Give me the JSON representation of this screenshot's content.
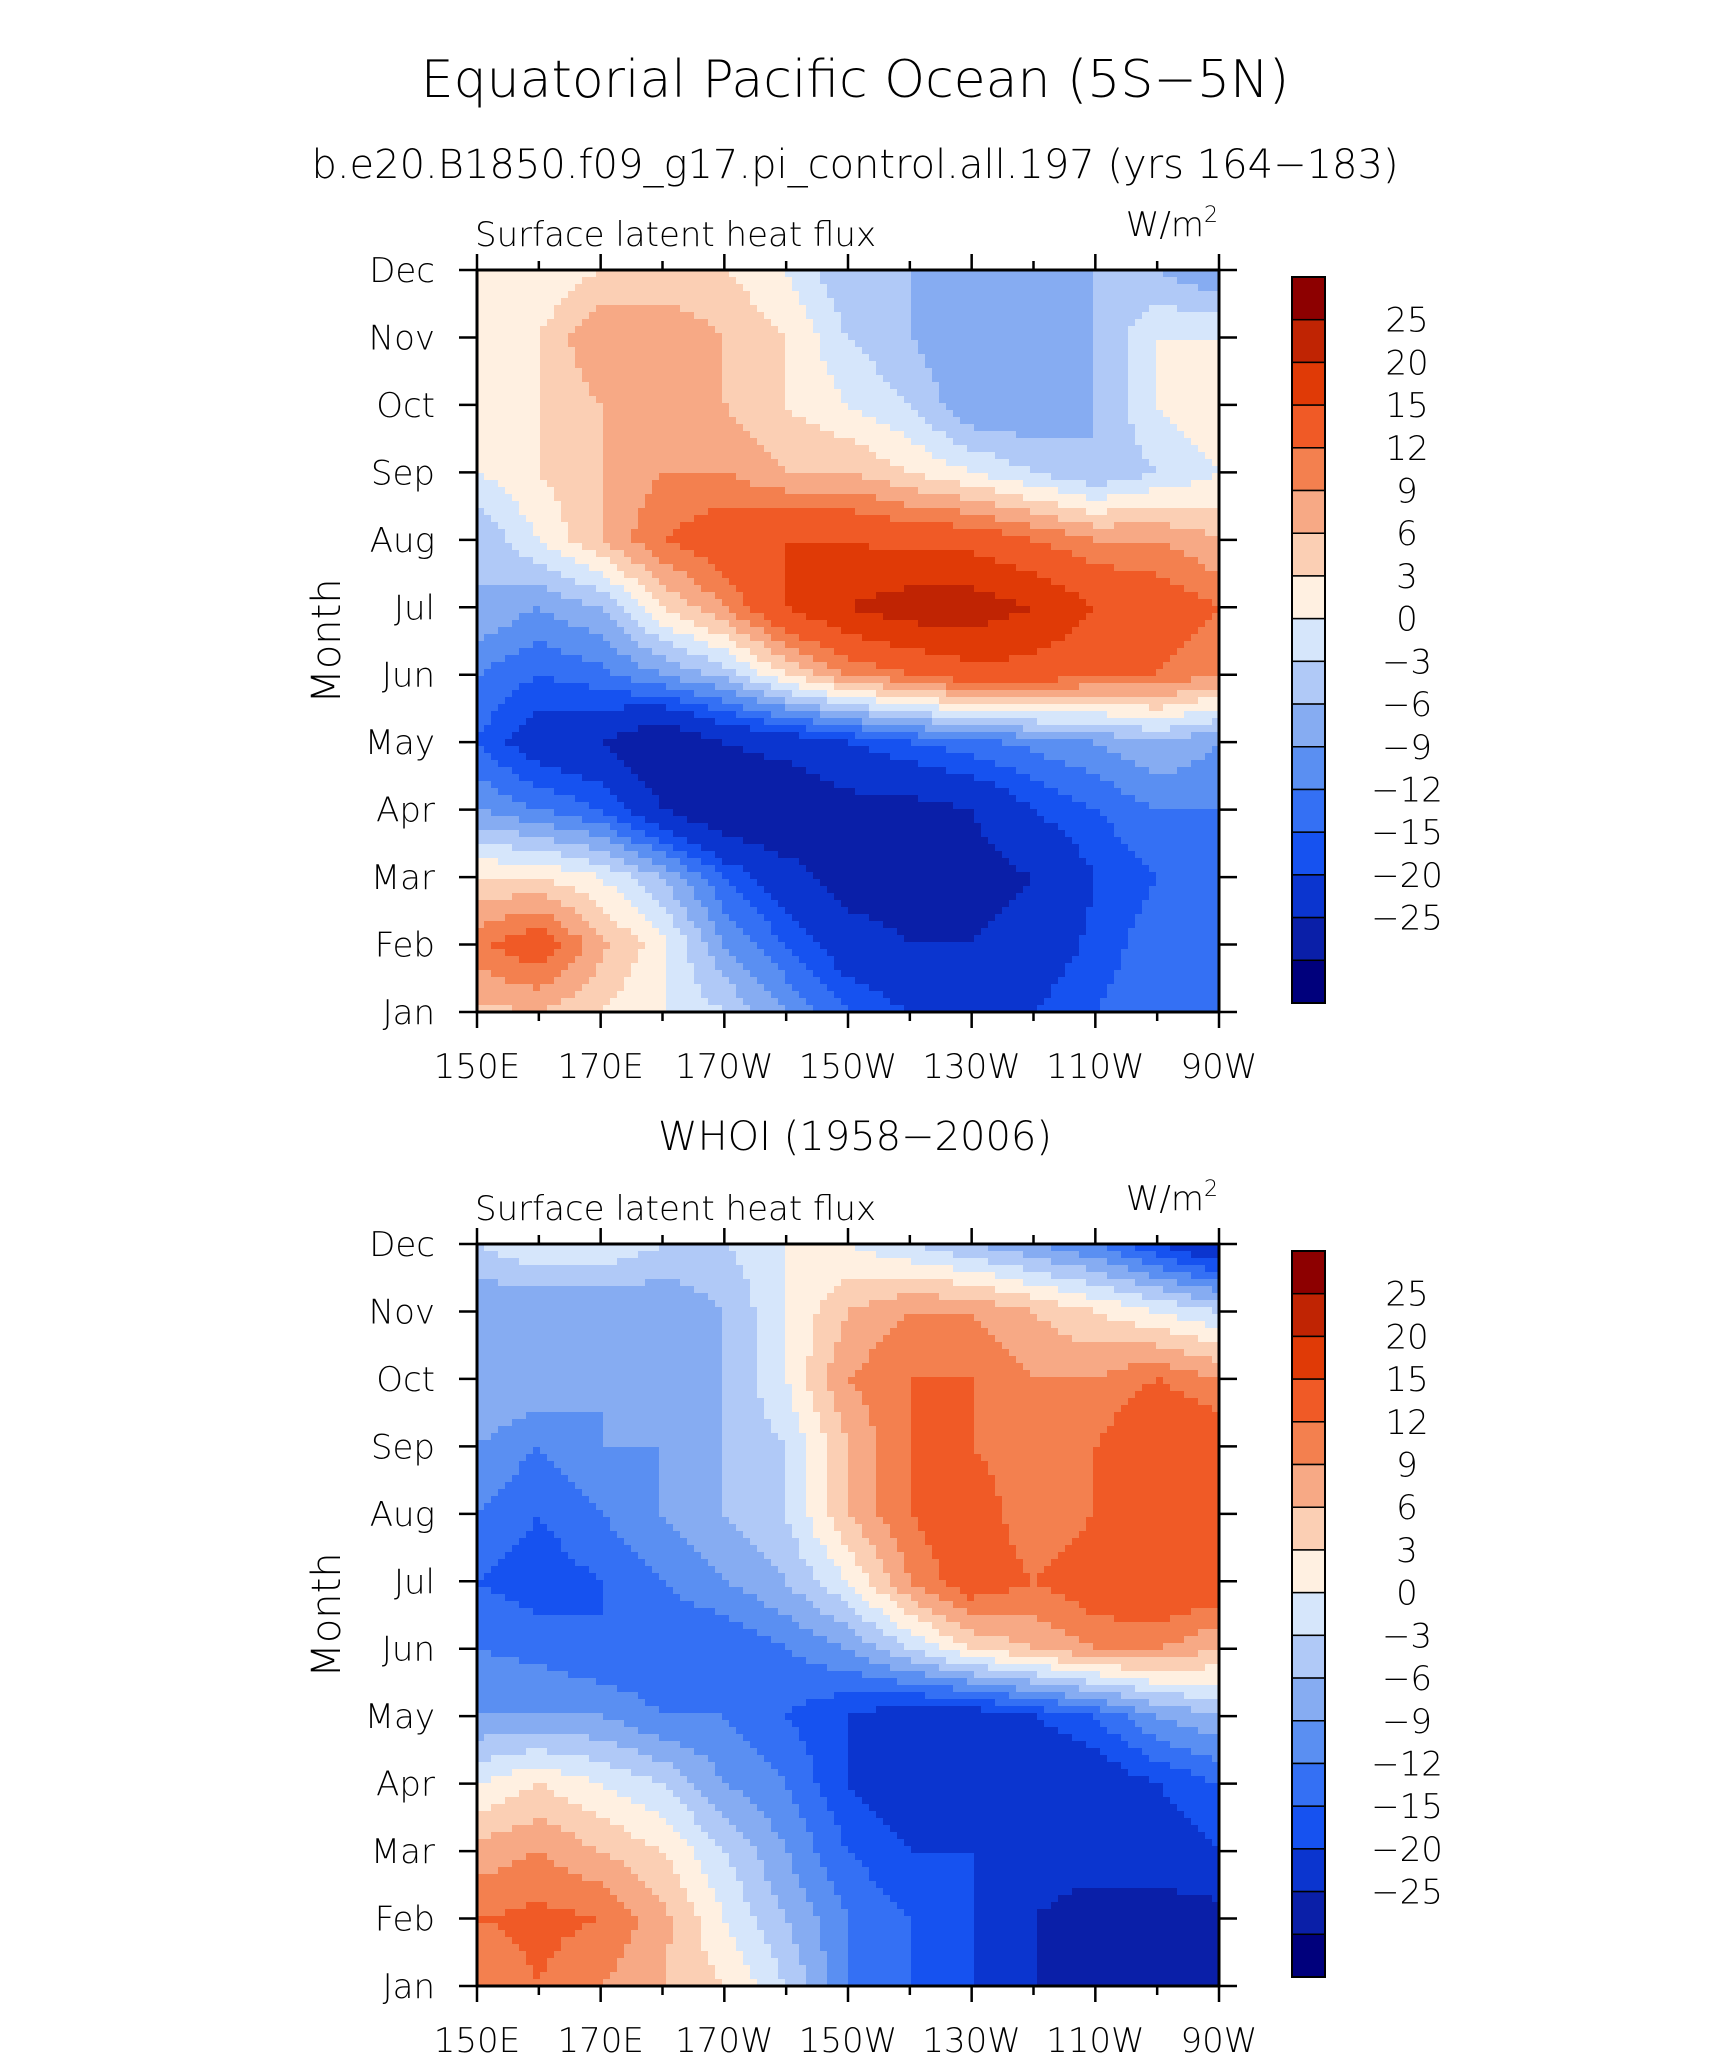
{
  "header": {
    "title": "Equatorial Pacific Ocean (5S−5N)",
    "subtitle": "b.e20.B1850.f09_g17.pi_control.all.197 (yrs 164−183)"
  },
  "colors": {
    "levels_palette": [
      "#00007c",
      "#0a1fa8",
      "#0b35cf",
      "#1652f0",
      "#3470f4",
      "#5a8ff2",
      "#86acf2",
      "#b0c9f7",
      "#d6e6fb",
      "#fff0e1",
      "#fbcfb4",
      "#f7a985",
      "#f3804f",
      "#f05a26",
      "#e03a06",
      "#c02403",
      "#8d0000"
    ]
  },
  "chart_data": [
    {
      "type": "heatmap",
      "panel_title": "",
      "title": "Surface latent heat flux",
      "units": "W/m²",
      "units_base": "W/m",
      "units_sup": "2",
      "ylabel": "Month",
      "xlabel": "",
      "x_ticks": [
        "150E",
        "170E",
        "170W",
        "150W",
        "130W",
        "110W",
        "90W"
      ],
      "x_values": [
        150,
        170,
        190,
        210,
        230,
        250,
        270
      ],
      "xlim": [
        150,
        270
      ],
      "y_ticks": [
        "Jan",
        "Feb",
        "Mar",
        "Apr",
        "May",
        "Jun",
        "Jul",
        "Aug",
        "Sep",
        "Oct",
        "Nov",
        "Dec"
      ],
      "y_values": [
        1,
        2,
        3,
        4,
        5,
        6,
        7,
        8,
        9,
        10,
        11,
        12
      ],
      "ylim": [
        1,
        12
      ],
      "contour_levels": [
        -25,
        -20,
        -15,
        -12,
        -9,
        -6,
        -3,
        0,
        3,
        6,
        9,
        12,
        15,
        20,
        25
      ],
      "colorbar_labels": [
        "25",
        "20",
        "15",
        "12",
        "9",
        "6",
        "3",
        "0",
        "−3",
        "−6",
        "−9",
        "−12",
        "−15",
        "−20",
        "−25"
      ],
      "grid_x": [
        150,
        160,
        170,
        180,
        190,
        200,
        210,
        220,
        230,
        240,
        250,
        260,
        270
      ],
      "grid_y_months": [
        "Jan",
        "Feb",
        "Mar",
        "Apr",
        "May",
        "Jun",
        "Jul",
        "Aug",
        "Sep",
        "Oct",
        "Nov",
        "Dec"
      ],
      "z": [
        [
          8,
          9,
          6,
          3,
          0,
          -6,
          -12,
          -15,
          -15,
          -15,
          -12,
          -9,
          -12
        ],
        [
          14,
          18,
          10,
          4,
          -6,
          -12,
          -18,
          -20,
          -20,
          -18,
          -14,
          -10,
          -12
        ],
        [
          6,
          6,
          3,
          -3,
          -12,
          -18,
          -22,
          -22,
          -22,
          -20,
          -15,
          -12,
          -12
        ],
        [
          -6,
          -9,
          -12,
          -20,
          -25,
          -25,
          -22,
          -22,
          -20,
          -15,
          -12,
          -9,
          -9
        ],
        [
          -12,
          -18,
          -20,
          -25,
          -20,
          -18,
          -15,
          -12,
          -10,
          -8,
          -6,
          -3,
          -6
        ],
        [
          -9,
          -12,
          -10,
          -6,
          -2,
          6,
          12,
          15,
          18,
          18,
          15,
          15,
          12
        ],
        [
          -3,
          -6,
          -3,
          6,
          12,
          20,
          25,
          28,
          28,
          25,
          20,
          18,
          15
        ],
        [
          -3,
          3,
          9,
          15,
          18,
          20,
          20,
          18,
          18,
          15,
          12,
          12,
          9
        ],
        [
          3,
          6,
          9,
          12,
          12,
          9,
          9,
          6,
          3,
          0,
          -3,
          0,
          3
        ],
        [
          6,
          6,
          9,
          9,
          9,
          6,
          3,
          0,
          -6,
          -6,
          -3,
          3,
          6
        ],
        [
          3,
          6,
          12,
          12,
          9,
          6,
          0,
          -3,
          -6,
          -6,
          -3,
          3,
          3
        ],
        [
          3,
          3,
          6,
          6,
          6,
          3,
          -3,
          -3,
          -6,
          -3,
          -3,
          -3,
          -6
        ]
      ]
    },
    {
      "type": "heatmap",
      "panel_title": "WHOI (1958−2006)",
      "title": "Surface latent heat flux",
      "units": "W/m²",
      "units_base": "W/m",
      "units_sup": "2",
      "ylabel": "Month",
      "xlabel": "",
      "x_ticks": [
        "150E",
        "170E",
        "170W",
        "150W",
        "130W",
        "110W",
        "90W"
      ],
      "x_values": [
        150,
        170,
        190,
        210,
        230,
        250,
        270
      ],
      "xlim": [
        150,
        270
      ],
      "y_ticks": [
        "Jan",
        "Feb",
        "Mar",
        "Apr",
        "May",
        "Jun",
        "Jul",
        "Aug",
        "Sep",
        "Oct",
        "Nov",
        "Dec"
      ],
      "y_values": [
        1,
        2,
        3,
        4,
        5,
        6,
        7,
        8,
        9,
        10,
        11,
        12
      ],
      "ylim": [
        1,
        12
      ],
      "contour_levels": [
        -25,
        -20,
        -15,
        -12,
        -9,
        -6,
        -3,
        0,
        3,
        6,
        9,
        12,
        15,
        20,
        25
      ],
      "colorbar_labels": [
        "25",
        "20",
        "15",
        "12",
        "9",
        "6",
        "3",
        "0",
        "−3",
        "−6",
        "−9",
        "−12",
        "−15",
        "−20",
        "−25"
      ],
      "grid_x": [
        150,
        160,
        170,
        180,
        190,
        200,
        210,
        220,
        230,
        240,
        250,
        260,
        270
      ],
      "grid_y_months": [
        "Jan",
        "Feb",
        "Mar",
        "Apr",
        "May",
        "Jun",
        "Jul",
        "Aug",
        "Sep",
        "Oct",
        "Nov",
        "Dec"
      ],
      "z": [
        [
          12,
          15,
          12,
          9,
          6,
          0,
          -9,
          -12,
          -15,
          -20,
          -20,
          -22,
          -25
        ],
        [
          15,
          16,
          15,
          10,
          3,
          -3,
          -9,
          -12,
          -15,
          -20,
          -22,
          -22,
          -22
        ],
        [
          10,
          12,
          9,
          6,
          0,
          -6,
          -12,
          -15,
          -15,
          -18,
          -18,
          -18,
          -15
        ],
        [
          3,
          6,
          3,
          0,
          -6,
          -9,
          -15,
          -18,
          -20,
          -20,
          -18,
          -15,
          -12
        ],
        [
          -6,
          -6,
          -6,
          -9,
          -9,
          -12,
          -15,
          -18,
          -18,
          -15,
          -12,
          -6,
          -3
        ],
        [
          -9,
          -10,
          -12,
          -12,
          -12,
          -9,
          -6,
          0,
          6,
          9,
          12,
          12,
          9
        ],
        [
          -12,
          -14,
          -12,
          -9,
          -6,
          -3,
          3,
          12,
          18,
          15,
          18,
          20,
          18
        ],
        [
          -9,
          -12,
          -9,
          -6,
          -3,
          0,
          9,
          15,
          18,
          12,
          15,
          18,
          18
        ],
        [
          -6,
          -9,
          -6,
          -6,
          -3,
          0,
          9,
          15,
          15,
          12,
          15,
          20,
          18
        ],
        [
          -3,
          -3,
          -6,
          -3,
          -3,
          3,
          12,
          15,
          15,
          12,
          12,
          15,
          12
        ],
        [
          -6,
          -6,
          -6,
          -6,
          -3,
          3,
          9,
          12,
          12,
          9,
          6,
          3,
          0
        ],
        [
          0,
          3,
          3,
          0,
          0,
          3,
          3,
          0,
          -3,
          -6,
          -9,
          -15,
          -20
        ]
      ]
    }
  ]
}
